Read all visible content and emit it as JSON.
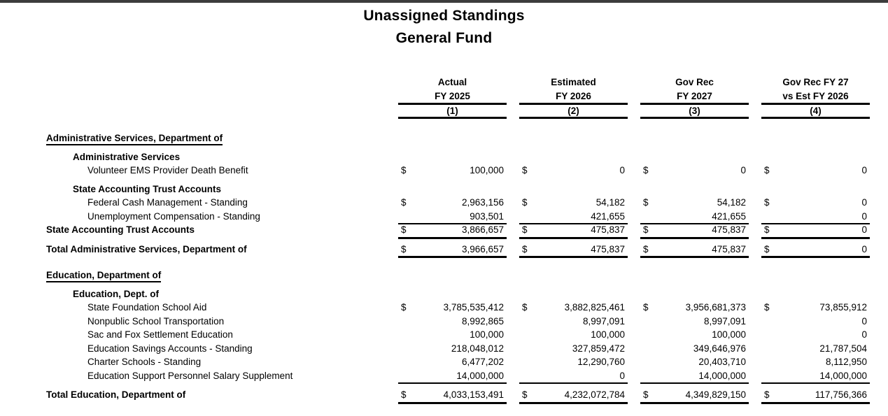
{
  "page": {
    "title_line1": "Unassigned Standings",
    "title_line2": "General Fund"
  },
  "colors": {
    "top_bar": "#3c3c3c",
    "text": "#000000",
    "background": "#ffffff",
    "rule_lines": "#000000"
  },
  "table": {
    "currency_symbol": "$",
    "columns": [
      {
        "line1": "Actual",
        "line2": "FY 2025",
        "number": "(1)"
      },
      {
        "line1": "Estimated",
        "line2": "FY 2026",
        "number": "(2)"
      },
      {
        "line1": "Gov Rec",
        "line2": "FY 2027",
        "number": "(3)"
      },
      {
        "line1": "Gov Rec FY 27",
        "line2": "vs Est FY 2026",
        "number": "(4)"
      }
    ],
    "rows": [
      {
        "type": "section",
        "label": "Administrative Services, Department of"
      },
      {
        "type": "group",
        "label": "Administrative Services"
      },
      {
        "type": "detail",
        "label": "Volunteer EMS Provider Death Benefit",
        "dollar": true,
        "underline": false,
        "values": [
          "100,000",
          "0",
          "0",
          "0"
        ]
      },
      {
        "type": "group",
        "label": "State Accounting Trust Accounts"
      },
      {
        "type": "detail",
        "label": "Federal Cash Management - Standing",
        "dollar": true,
        "underline": false,
        "values": [
          "2,963,156",
          "54,182",
          "54,182",
          "0"
        ]
      },
      {
        "type": "detail",
        "label": "Unemployment Compensation - Standing",
        "dollar": false,
        "underline": true,
        "values": [
          "903,501",
          "421,655",
          "421,655",
          "0"
        ]
      },
      {
        "type": "subtotal",
        "label": "State Accounting Trust Accounts",
        "dollar": true,
        "underline": true,
        "values": [
          "3,866,657",
          "475,837",
          "475,837",
          "0"
        ]
      },
      {
        "type": "total",
        "label": "Total Administrative Services, Department of",
        "dollar": true,
        "underline": true,
        "values": [
          "3,966,657",
          "475,837",
          "475,837",
          "0"
        ]
      },
      {
        "type": "section",
        "label": "Education, Department of"
      },
      {
        "type": "group",
        "label": "Education, Dept. of"
      },
      {
        "type": "detail",
        "label": "State Foundation School Aid",
        "dollar": true,
        "underline": false,
        "values": [
          "3,785,535,412",
          "3,882,825,461",
          "3,956,681,373",
          "73,855,912"
        ]
      },
      {
        "type": "detail",
        "label": "Nonpublic School Transportation",
        "dollar": false,
        "underline": false,
        "values": [
          "8,992,865",
          "8,997,091",
          "8,997,091",
          "0"
        ]
      },
      {
        "type": "detail",
        "label": "Sac and Fox Settlement Education",
        "dollar": false,
        "underline": false,
        "values": [
          "100,000",
          "100,000",
          "100,000",
          "0"
        ]
      },
      {
        "type": "detail",
        "label": "Education Savings Accounts - Standing",
        "dollar": false,
        "underline": false,
        "values": [
          "218,048,012",
          "327,859,472",
          "349,646,976",
          "21,787,504"
        ]
      },
      {
        "type": "detail",
        "label": "Charter Schools - Standing",
        "dollar": false,
        "underline": false,
        "values": [
          "6,477,202",
          "12,290,760",
          "20,403,710",
          "8,112,950"
        ]
      },
      {
        "type": "detail",
        "label": "Education Support Personnel Salary Supplement",
        "dollar": false,
        "underline": true,
        "values": [
          "14,000,000",
          "0",
          "14,000,000",
          "14,000,000"
        ]
      },
      {
        "type": "total",
        "label": "Total Education, Department of",
        "dollar": true,
        "underline": true,
        "values": [
          "4,033,153,491",
          "4,232,072,784",
          "4,349,829,150",
          "117,756,366"
        ]
      }
    ]
  }
}
